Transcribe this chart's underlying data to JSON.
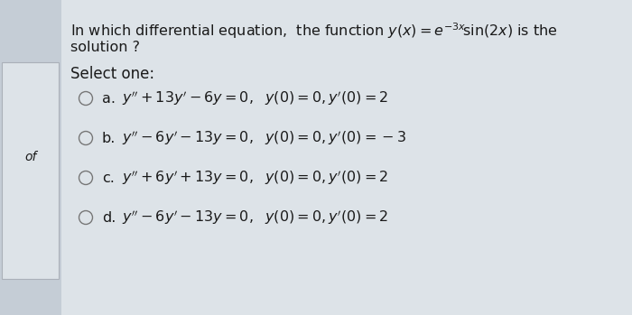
{
  "bg_color": "#c5cdd6",
  "main_bg": "#dde3e8",
  "left_card_color": "#e8eaec",
  "text_color": "#1a1a1a",
  "title_line1": "In which differential equation,  the function $y(x) = e^{-3x}\\!\\sin(2x)$ is the",
  "title_line2": "solution ?",
  "select_one": "Select one:",
  "options": [
    {
      "label": "a.",
      "eq": "$y'' +13y' - 6y = 0,$",
      "ics": "$y(0) = 0, y'(0) = 2$"
    },
    {
      "label": "b.",
      "eq": "$y'' -6y' - 13y = 0,$",
      "ics": "$y(0) = 0, y'(0) = -3$"
    },
    {
      "label": "c.",
      "eq": "$y'' +6y' + 13y = 0,$",
      "ics": "$y(0) = 0, y'(0) = 2$"
    },
    {
      "label": "d.",
      "eq": "$y'' -6y' - 13y = 0,$",
      "ics": "$y(0) = 0, y'(0) = 2$"
    }
  ],
  "title_fontsize": 11.5,
  "option_fontsize": 11.5,
  "select_fontsize": 12
}
